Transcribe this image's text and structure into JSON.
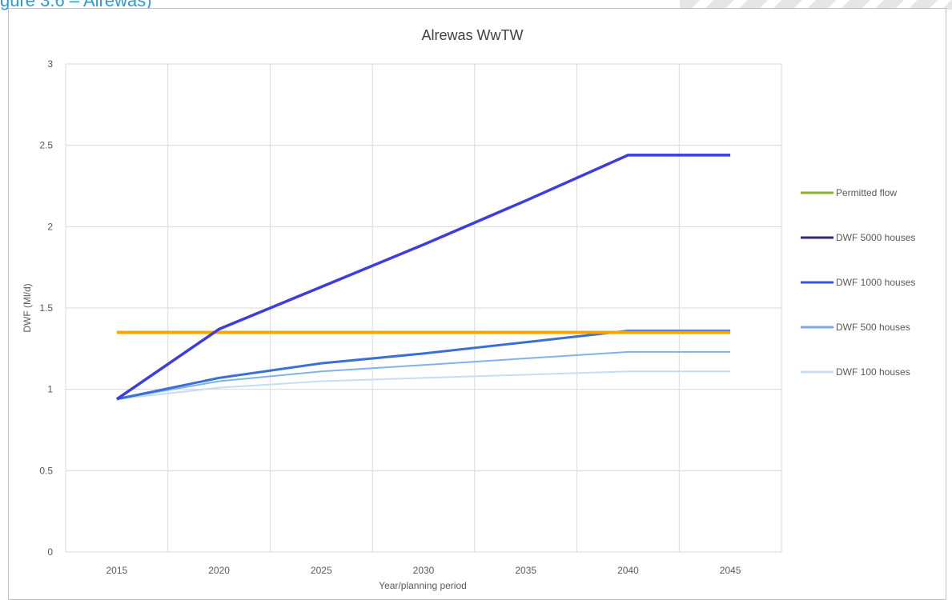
{
  "caption": "gure 3.6 – Alrewas)",
  "chart_data": {
    "type": "line",
    "title": "Alrewas WwTW",
    "xlabel": "Year/planning period",
    "ylabel": "DWF (Ml/d)",
    "x": [
      "2015",
      "2020",
      "2025",
      "2030",
      "2035",
      "2040",
      "2045"
    ],
    "x_tick_labels": [
      "2015",
      "2020",
      "2025",
      "2030",
      "2035",
      "2040",
      "2045"
    ],
    "y_tick_labels": [
      "0",
      "0.5",
      "1",
      "1.5",
      "2",
      "2.5",
      "3"
    ],
    "ylim": [
      0,
      3
    ],
    "grid": true,
    "legend_position": "right",
    "series": [
      {
        "name": "Permitted flow",
        "color": "#f0a800",
        "legend_color": "#8db12f",
        "values": [
          1.35,
          1.35,
          1.35,
          1.35,
          1.35,
          1.35,
          1.35
        ]
      },
      {
        "name": "DWF 5000 houses",
        "color": "#3c3ce0",
        "legend_color": "#2e2a7a",
        "values": [
          0.94,
          1.37,
          1.63,
          1.89,
          2.16,
          2.44,
          2.44
        ]
      },
      {
        "name": "DWF 1000 houses",
        "color": "#3a6fd8",
        "legend_color": "#3c50e0",
        "values": [
          0.94,
          1.07,
          1.16,
          1.22,
          1.29,
          1.36,
          1.36
        ]
      },
      {
        "name": "DWF 500 houses",
        "color": "#7fb2ea",
        "legend_color": "#7fa8e6",
        "values": [
          0.94,
          1.05,
          1.11,
          1.15,
          1.19,
          1.23,
          1.23
        ]
      },
      {
        "name": "DWF 100 houses",
        "color": "#c4ddf3",
        "legend_color": "#c8dbf0",
        "values": [
          0.94,
          1.01,
          1.05,
          1.07,
          1.09,
          1.11,
          1.11
        ]
      }
    ]
  }
}
